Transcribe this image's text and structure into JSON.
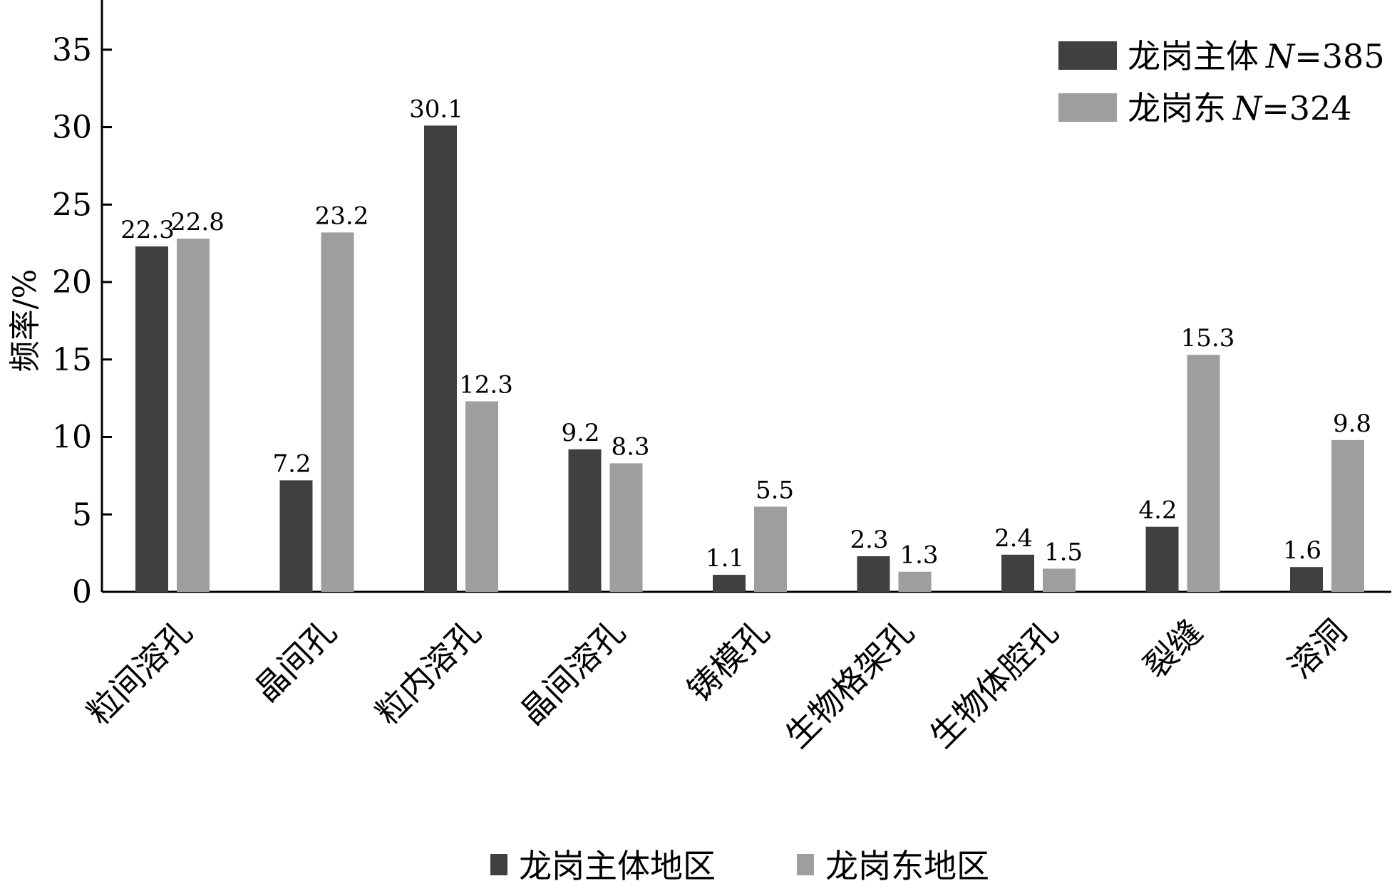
{
  "chart_data": {
    "type": "bar",
    "ylabel": "频率/%",
    "ylim": [
      0,
      38
    ],
    "yticks": [
      0,
      5,
      10,
      15,
      20,
      25,
      30,
      35
    ],
    "categories": [
      "粒间溶孔",
      "晶间孔",
      "粒内溶孔",
      "晶间溶孔",
      "铸模孔",
      "生物格架孔",
      "生物体腔孔",
      "裂缝",
      "溶洞"
    ],
    "series": [
      {
        "name": "龙岗主体",
        "n_label": "N",
        "n_value": "=385",
        "color": "#404040",
        "values": [
          22.3,
          7.2,
          30.1,
          9.2,
          1.1,
          2.3,
          2.4,
          4.2,
          1.6
        ],
        "labels": [
          "22.3",
          "7.2",
          "30.1",
          "9.2",
          "1.1",
          "2.3",
          "2.4",
          "4.2",
          "1.6"
        ]
      },
      {
        "name": "龙岗东",
        "n_label": "N",
        "n_value": "=324",
        "color": "#9e9e9e",
        "values": [
          22.8,
          23.2,
          12.3,
          8.3,
          5.5,
          1.3,
          1.5,
          15.3,
          9.8
        ],
        "labels": [
          "22.8",
          "23.2",
          "12.3",
          "8.3",
          "5.5",
          "1.3",
          "1.5",
          "15.3",
          "9.8"
        ]
      }
    ],
    "legend_position": "top-right",
    "bottom_legend": [
      "龙岗主体地区",
      "龙岗东地区"
    ]
  }
}
